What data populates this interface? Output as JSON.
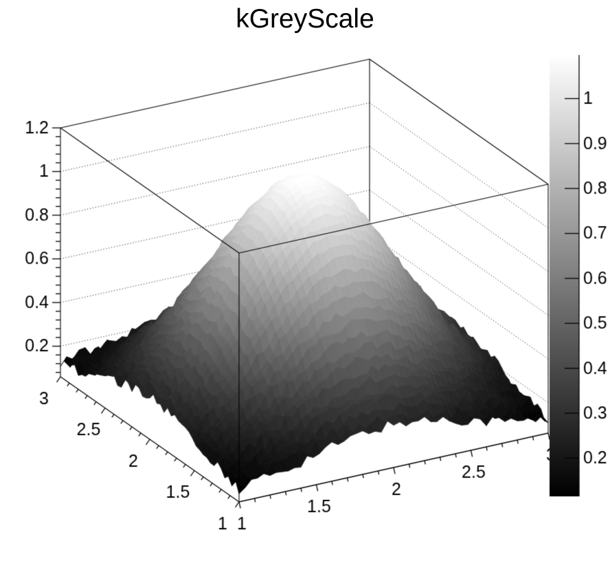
{
  "title": "kGreyScale",
  "chart_data": {
    "type": "surface",
    "title": "kGreyScale",
    "surface": {
      "form": "gaussian2d_plus_pedestal",
      "center": [
        2,
        2
      ],
      "sigma": 0.52,
      "amplitude": 1.0,
      "pedestal": 0.1,
      "peak_z": 1.1,
      "noise_base": 0.008,
      "noise_low": 0.022
    },
    "x_axis": {
      "range": [
        1,
        3
      ],
      "major_ticks": [
        1,
        1.5,
        2,
        2.5,
        3
      ],
      "labels": [
        "1",
        "1.5",
        "2",
        "2.5",
        "3"
      ],
      "minor_step": 0.1
    },
    "y_axis": {
      "range": [
        1,
        3
      ],
      "major_ticks": [
        1,
        1.5,
        2,
        2.5,
        3
      ],
      "labels": [
        "1",
        "1.5",
        "2",
        "2.5",
        "3"
      ],
      "minor_step": 0.1
    },
    "z_axis": {
      "range": [
        0.06,
        1.2
      ],
      "major_ticks": [
        0.2,
        0.4,
        0.6,
        0.8,
        1,
        1.2
      ],
      "labels": [
        "0.2",
        "0.4",
        "0.6",
        "0.8",
        "1",
        "1.2"
      ],
      "minor_step": 0.04,
      "grid_levels": [
        0.2,
        0.4,
        0.6,
        0.8,
        1
      ]
    },
    "color_scale": {
      "palette": "kGreyScale",
      "min": 0.115,
      "max": 1.097,
      "low_color": "#000000",
      "high_color": "#ffffff",
      "ticks": [
        0.2,
        0.3,
        0.4,
        0.5,
        0.6,
        0.7,
        0.8,
        0.9,
        1
      ],
      "tick_labels": [
        "0.2",
        "0.3",
        "0.4",
        "0.5",
        "0.6",
        "0.7",
        "0.8",
        "0.9",
        "1"
      ]
    },
    "grid_bins": 50,
    "grid_on": true,
    "legend_position": "right-colorbar",
    "background": "#ffffff",
    "line_color": "#000000"
  }
}
